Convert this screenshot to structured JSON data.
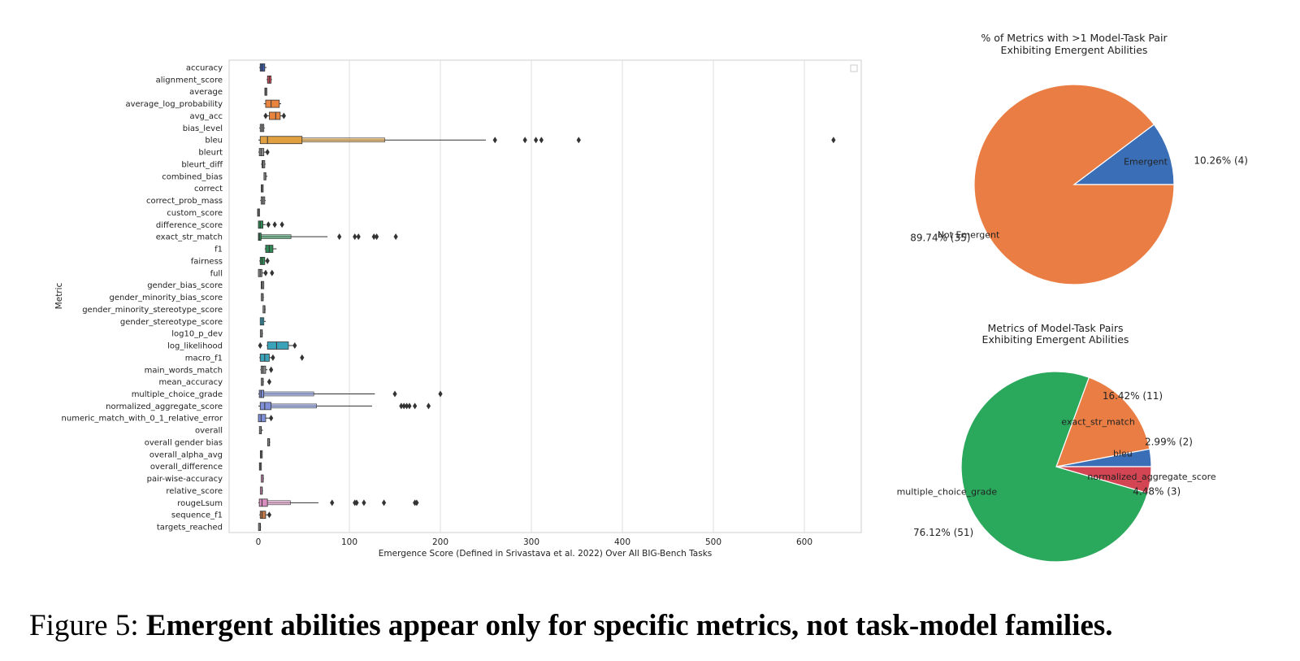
{
  "figure_caption": {
    "label": "Figure 5:",
    "text": "Emergent abilities appear only for specific metrics, not task-model families."
  },
  "chart_data": [
    {
      "type": "boxen",
      "orientation": "horizontal",
      "xlabel": "Emergence Score (Defined in Srivastava et al. 2022) Over All BIG-Bench Tasks",
      "ylabel": "Metric",
      "xlim": [
        -30,
        660
      ],
      "xticks": [
        0,
        100,
        200,
        300,
        400,
        500,
        600
      ],
      "grid": "vertical",
      "legend": "top-right (empty)",
      "categories": [
        "accuracy",
        "alignment_score",
        "average",
        "average_log_probability",
        "avg_acc",
        "bias_level",
        "bleu",
        "bleurt",
        "bleurt_diff",
        "combined_bias",
        "correct",
        "correct_prob_mass",
        "custom_score",
        "difference_score",
        "exact_str_match",
        "f1",
        "fairness",
        "full",
        "gender_bias_score",
        "gender_minority_bias_score",
        "gender_minority_stereotype_score",
        "gender_stereotype_score",
        "log10_p_dev",
        "log_likelihood",
        "macro_f1",
        "main_words_match",
        "mean_accuracy",
        "multiple_choice_grade",
        "normalized_aggregate_score",
        "numeric_match_with_0_1_relative_error",
        "overall",
        "overall gender bias",
        "overall_alpha_avg",
        "overall_difference",
        "pair-wise-accuracy",
        "relative_score",
        "rougeLsum",
        "sequence_f1",
        "targets_reached"
      ],
      "colors": [
        "#3b5aa3",
        "#d1515c",
        "#8c8c8c",
        "#e8843e",
        "#e8843e",
        "#8c8c8c",
        "#e0a040",
        "#8c8c8c",
        "#8c8c8c",
        "#8c8c8c",
        "#8c8c8c",
        "#8c8c8c",
        "#8c8c8c",
        "#2f8a55",
        "#2f8a55",
        "#2f8a55",
        "#2f8a55",
        "#8c8c8c",
        "#8c8c8c",
        "#8c8c8c",
        "#8c8c8c",
        "#3aa2b9",
        "#8c8c8c",
        "#3aa2b9",
        "#3aa2b9",
        "#8c8c8c",
        "#8c8c8c",
        "#8090d8",
        "#8090d8",
        "#8090d8",
        "#8c8c8c",
        "#8c8c8c",
        "#8c8c8c",
        "#8c8c8c",
        "#d88fc0",
        "#d88fc0",
        "#d88fc0",
        "#c47a4a",
        "#8c8c8c"
      ],
      "series": [
        {
          "q1": 2,
          "median": 4,
          "q3": 7,
          "whisker_low": 1,
          "whisker_high": 9,
          "outliers": []
        },
        {
          "q1": 10,
          "median": 12,
          "q3": 14,
          "whisker_low": 9,
          "whisker_high": 15,
          "outliers": []
        },
        {
          "q1": 8,
          "median": 8,
          "q3": 8,
          "whisker_low": 8,
          "whisker_high": 8,
          "outliers": []
        },
        {
          "q1": 8,
          "median": 14,
          "q3": 23,
          "whisker_low": 6,
          "whisker_high": 25,
          "outliers": []
        },
        {
          "q1": 12,
          "median": 19,
          "q3": 24,
          "whisker_low": 10,
          "whisker_high": 26,
          "outliers": [
            8,
            28
          ]
        },
        {
          "q1": 2,
          "median": 4,
          "q3": 6,
          "whisker_low": 1,
          "whisker_high": 7,
          "outliers": []
        },
        {
          "q1": 2,
          "median": 10,
          "q3": 48,
          "whisker_low": 0,
          "whisker_high": 250,
          "outliers": [
            260,
            293,
            305,
            311,
            352,
            632
          ]
        },
        {
          "q1": 1,
          "median": 3,
          "q3": 6,
          "whisker_low": 0,
          "whisker_high": 8,
          "outliers": [
            10
          ]
        },
        {
          "q1": 4,
          "median": 5,
          "q3": 7,
          "whisker_low": 3,
          "whisker_high": 8,
          "outliers": []
        },
        {
          "q1": 7,
          "median": 8,
          "q3": 9,
          "whisker_low": 7,
          "whisker_high": 10,
          "outliers": []
        },
        {
          "q1": 4,
          "median": 4,
          "q3": 4,
          "whisker_low": 4,
          "whisker_high": 4,
          "outliers": []
        },
        {
          "q1": 3,
          "median": 5,
          "q3": 7,
          "whisker_low": 2,
          "whisker_high": 8,
          "outliers": []
        },
        {
          "q1": 0,
          "median": 0,
          "q3": 1,
          "whisker_low": 0,
          "whisker_high": 1,
          "outliers": []
        },
        {
          "q1": 0,
          "median": 2,
          "q3": 5,
          "whisker_low": 0,
          "whisker_high": 8,
          "outliers": [
            11,
            18,
            26
          ]
        },
        {
          "q1": 0,
          "median": 1,
          "q3": 3,
          "whisker_low": 0,
          "whisker_high": 76,
          "outliers": [
            89,
            106,
            110,
            127,
            130,
            151
          ]
        },
        {
          "q1": 8,
          "median": 12,
          "q3": 16,
          "whisker_low": 7,
          "whisker_high": 20,
          "outliers": []
        },
        {
          "q1": 2,
          "median": 4,
          "q3": 7,
          "whisker_low": 1,
          "whisker_high": 8,
          "outliers": [
            10
          ]
        },
        {
          "q1": 0,
          "median": 2,
          "q3": 4,
          "whisker_low": 0,
          "whisker_high": 6,
          "outliers": [
            8,
            15
          ]
        },
        {
          "q1": 3,
          "median": 4,
          "q3": 6,
          "whisker_low": 3,
          "whisker_high": 6,
          "outliers": []
        },
        {
          "q1": 4,
          "median": 5,
          "q3": 6,
          "whisker_low": 4,
          "whisker_high": 6,
          "outliers": []
        },
        {
          "q1": 6,
          "median": 7,
          "q3": 8,
          "whisker_low": 6,
          "whisker_high": 8,
          "outliers": []
        },
        {
          "q1": 2,
          "median": 4,
          "q3": 6,
          "whisker_low": 2,
          "whisker_high": 8,
          "outliers": []
        },
        {
          "q1": 3,
          "median": 4,
          "q3": 5,
          "whisker_low": 3,
          "whisker_high": 5,
          "outliers": []
        },
        {
          "q1": 10,
          "median": 20,
          "q3": 33,
          "whisker_low": 9,
          "whisker_high": 38,
          "outliers": [
            2,
            40
          ]
        },
        {
          "q1": 2,
          "median": 7,
          "q3": 12,
          "whisker_low": 1,
          "whisker_high": 14,
          "outliers": [
            16,
            48
          ]
        },
        {
          "q1": 3,
          "median": 5,
          "q3": 8,
          "whisker_low": 2,
          "whisker_high": 10,
          "outliers": [
            14
          ]
        },
        {
          "q1": 4,
          "median": 5,
          "q3": 6,
          "whisker_low": 4,
          "whisker_high": 6,
          "outliers": [
            12
          ]
        },
        {
          "q1": 1,
          "median": 3,
          "q3": 6,
          "whisker_low": 0,
          "whisker_high": 128,
          "outliers": [
            150,
            200
          ]
        },
        {
          "q1": 2,
          "median": 7,
          "q3": 14,
          "whisker_low": 0,
          "whisker_high": 125,
          "outliers": [
            157,
            160,
            163,
            166,
            172,
            187
          ]
        },
        {
          "q1": 0,
          "median": 3,
          "q3": 8,
          "whisker_low": 0,
          "whisker_high": 12,
          "outliers": [
            14
          ]
        },
        {
          "q1": 2,
          "median": 3,
          "q3": 4,
          "whisker_low": 2,
          "whisker_high": 5,
          "outliers": []
        },
        {
          "q1": 11,
          "median": 12,
          "q3": 13,
          "whisker_low": 11,
          "whisker_high": 13,
          "outliers": []
        },
        {
          "q1": 3,
          "median": 3,
          "q3": 3,
          "whisker_low": 3,
          "whisker_high": 3,
          "outliers": []
        },
        {
          "q1": 2,
          "median": 2,
          "q3": 2,
          "whisker_low": 2,
          "whisker_high": 2,
          "outliers": []
        },
        {
          "q1": 4,
          "median": 5,
          "q3": 6,
          "whisker_low": 4,
          "whisker_high": 6,
          "outliers": []
        },
        {
          "q1": 3,
          "median": 4,
          "q3": 5,
          "whisker_low": 3,
          "whisker_high": 5,
          "outliers": []
        },
        {
          "q1": 1,
          "median": 4,
          "q3": 10,
          "whisker_low": 0,
          "whisker_high": 66,
          "outliers": [
            81,
            106,
            108,
            116,
            138,
            172,
            174
          ]
        },
        {
          "q1": 2,
          "median": 4,
          "q3": 8,
          "whisker_low": 1,
          "whisker_high": 10,
          "outliers": [
            12
          ]
        },
        {
          "q1": 1,
          "median": 2,
          "q3": 3,
          "whisker_low": 1,
          "whisker_high": 3,
          "outliers": []
        }
      ]
    },
    {
      "type": "pie",
      "title": "% of Metrics with >1 Model-Task Pair\nExhibiting Emergent Abilities",
      "slices": [
        {
          "label": "Emergent",
          "value": 4,
          "pct_label": "10.26%  (4)",
          "color": "#3a6fb8"
        },
        {
          "label": "Not Emergent",
          "value": 35,
          "pct_label": "89.74%  (35)",
          "color": "#ea7d43"
        }
      ]
    },
    {
      "type": "pie",
      "title": "Metrics of Model-Task Pairs\nExhibiting Emergent Abilities",
      "slices": [
        {
          "label": "bleu",
          "value": 2,
          "pct_label": "2.99%  (2)",
          "color": "#3a6fb8"
        },
        {
          "label": "exact_str_match",
          "value": 11,
          "pct_label": "16.42%  (11)",
          "color": "#ea7d43"
        },
        {
          "label": "multiple_choice_grade",
          "value": 51,
          "pct_label": "76.12%  (51)",
          "color": "#2aa85c"
        },
        {
          "label": "normalized_aggregate_score",
          "value": 3,
          "pct_label": "4.48%  (3)",
          "color": "#d34552"
        }
      ]
    }
  ]
}
